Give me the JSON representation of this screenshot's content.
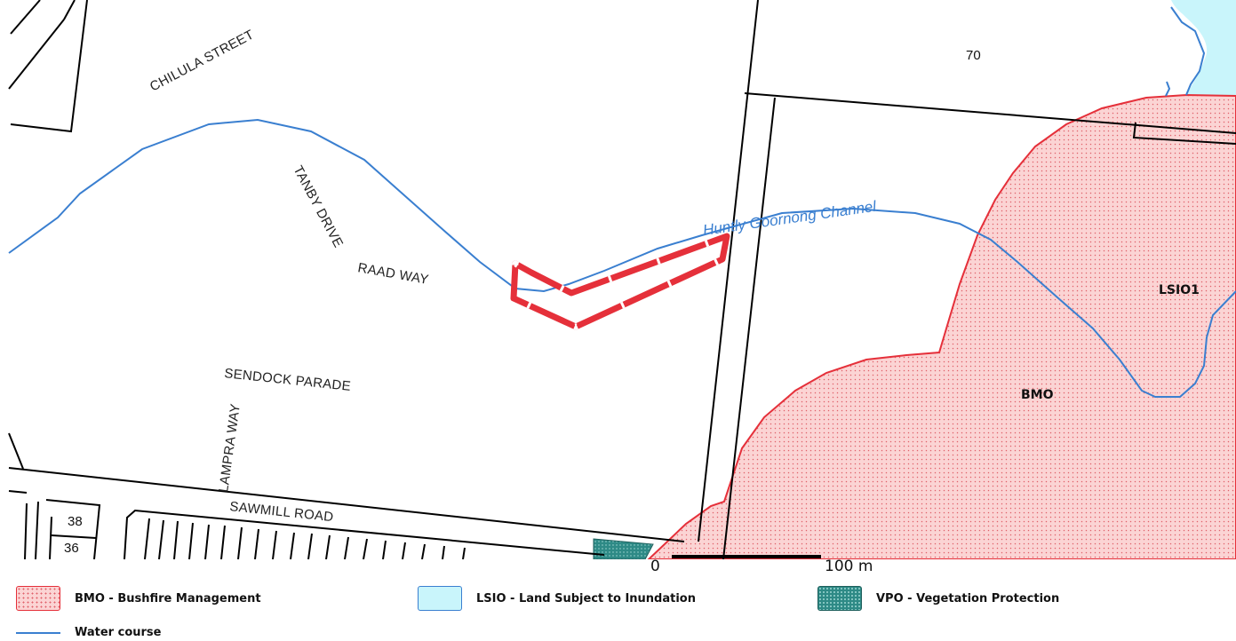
{
  "map": {
    "streets": {
      "chilula": "CHILULA STREET",
      "tanby": "TANBY DRIVE",
      "raad": "RAAD WAY",
      "sendock": "SENDOCK PARADE",
      "lampra": "LAMPRA WAY",
      "sawmill": "SAWMILL ROAD"
    },
    "lot_numbers": {
      "lot70": "70",
      "lot38": "38",
      "lot36": "36"
    },
    "zones": {
      "lsio1": "LSIO1",
      "bmo": "BMO"
    },
    "water_label": "Huntly Goornong Channel",
    "scale": {
      "start": "0",
      "end": "100 m"
    },
    "colors": {
      "bmo_fill": "#fbd4d4",
      "bmo_edge": "#e5303a",
      "lsio_fill": "#c9f5fb",
      "vpo_fill": "#2e8a86",
      "water": "#3a7fd0",
      "site_outline": "#e5303a"
    }
  },
  "legend": {
    "bmo": "BMO - Bushfire Management",
    "lsio": "LSIO - Land Subject to Inundation",
    "vpo": "VPO - Vegetation Protection",
    "water": "Water course"
  }
}
